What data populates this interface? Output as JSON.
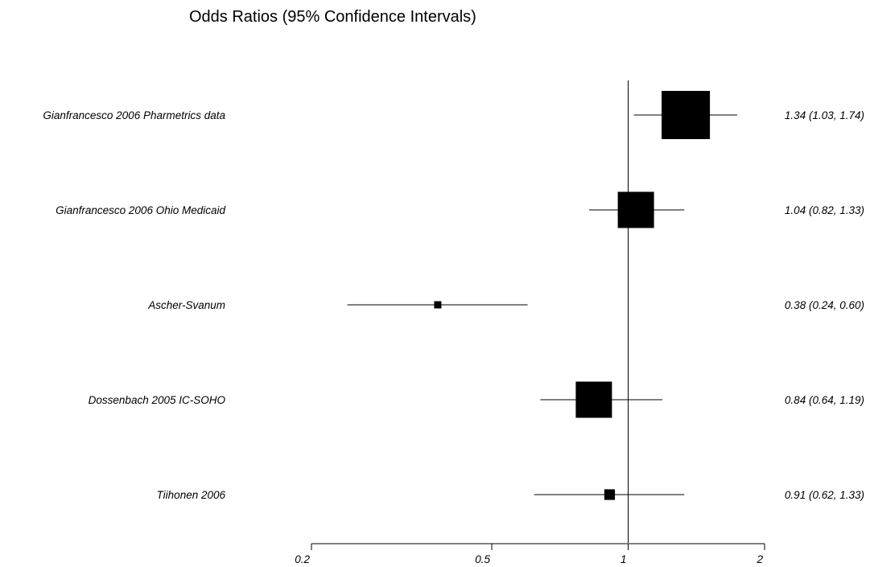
{
  "chart_data": {
    "type": "forest",
    "title": "Odds Ratios (95% Confidence Intervals)",
    "xscale": "log",
    "xlim": [
      0.2,
      2
    ],
    "xticks": [
      0.2,
      0.5,
      1,
      2
    ],
    "xtick_labels": [
      "0.2",
      "0.5",
      "1",
      "2"
    ],
    "reference_line": 1,
    "studies": [
      {
        "label": "Gianfrancesco 2006 Pharmetrics data",
        "or": 1.34,
        "lower": 1.03,
        "upper": 1.74,
        "weight": 1.0,
        "text": "1.34 (1.03, 1.74)"
      },
      {
        "label": "Gianfrancesco 2006 Ohio Medicaid",
        "or": 1.04,
        "lower": 0.82,
        "upper": 1.33,
        "weight": 0.75,
        "text": "1.04 (0.82, 1.33)"
      },
      {
        "label": "Ascher-Svanum",
        "or": 0.38,
        "lower": 0.24,
        "upper": 0.6,
        "weight": 0.15,
        "text": "0.38 (0.24, 0.60)"
      },
      {
        "label": "Dossenbach 2005  IC-SOHO",
        "or": 0.84,
        "lower": 0.64,
        "upper": 1.19,
        "weight": 0.75,
        "text": "0.84 (0.64, 1.19)"
      },
      {
        "label": "Tiihonen 2006",
        "or": 0.91,
        "lower": 0.62,
        "upper": 1.33,
        "weight": 0.22,
        "text": "0.91 (0.62, 1.33)"
      }
    ]
  }
}
